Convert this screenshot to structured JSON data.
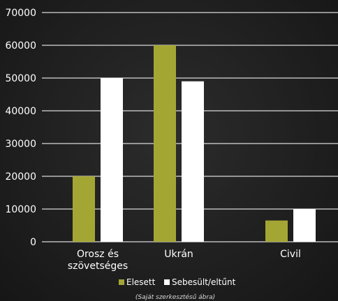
{
  "chart_data": {
    "type": "bar",
    "categories": [
      [
        "Orosz és",
        "szövetséges"
      ],
      [
        "Ukrán"
      ],
      [
        "Civil"
      ]
    ],
    "series": [
      {
        "name": "Elesett",
        "values": [
          20000,
          60000,
          6500
        ],
        "color": "#a4a634"
      },
      {
        "name": "Sebesült/eltűnt",
        "values": [
          50000,
          49000,
          10000
        ],
        "color": "#ffffff"
      }
    ],
    "ylim": [
      0,
      70000
    ],
    "yticks": [
      0,
      10000,
      20000,
      30000,
      40000,
      50000,
      60000,
      70000
    ],
    "grid": true,
    "legend_position": "bottom-center",
    "caption": "(Saját szerkesztésű ábra)"
  }
}
